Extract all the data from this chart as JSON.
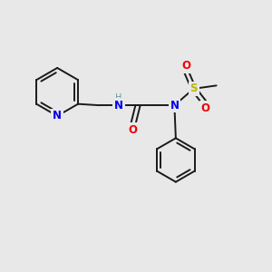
{
  "bg_color": "#e8e8e8",
  "bond_color": "#1a1a1a",
  "N_color": "#0000ee",
  "O_color": "#ee0000",
  "S_color": "#b8b800",
  "H_color": "#6a9a9a",
  "font_size": 8.5,
  "line_width": 1.4,
  "fig_size": [
    3.0,
    3.0
  ],
  "dpi": 100,
  "xlim": [
    0,
    10
  ],
  "ylim": [
    0,
    10
  ]
}
